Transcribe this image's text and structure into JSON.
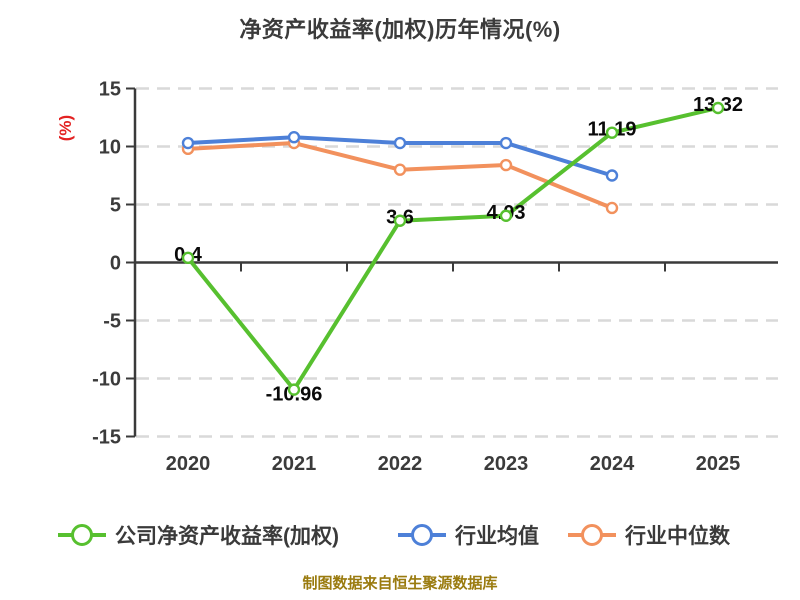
{
  "title": "净资产收益率(加权)历年情况(%)",
  "caption": "制图数据来自恒生聚源数据库",
  "chart_data": {
    "type": "line",
    "title": "净资产收益率(加权)历年情况(%)",
    "categories": [
      "2020",
      "2021",
      "2022",
      "2023",
      "2024",
      "2025"
    ],
    "xlabel": "",
    "ylabel": "(%)",
    "ylim": [
      -15,
      15
    ],
    "y_ticks": [
      15,
      10,
      5,
      0,
      -5,
      -10,
      -15
    ],
    "grid": "horizontal-dashed",
    "legend_position": "bottom",
    "series": [
      {
        "name": "公司净资产收益率(加权)",
        "slug": "company-roe-weighted",
        "color": "#57c02f",
        "values": [
          0.4,
          -10.96,
          3.6,
          4.03,
          11.19,
          13.32
        ],
        "point_labels": [
          "0.4",
          "-10.96",
          "3.6",
          "4.03",
          "11.19",
          "13.32"
        ],
        "labeled": true
      },
      {
        "name": "行业均值",
        "slug": "industry-average",
        "color": "#4d80d8",
        "values": [
          10.3,
          10.8,
          10.3,
          10.3,
          7.5
        ],
        "labeled": false
      },
      {
        "name": "行业中位数",
        "slug": "industry-median",
        "color": "#f2915d",
        "values": [
          9.8,
          10.3,
          8.0,
          8.4,
          4.7
        ],
        "labeled": false
      }
    ],
    "axis_color": "#3a3a3a",
    "tick_label_color": "#3b3b3b",
    "ylabel_color": "#e32222",
    "gridline_color": "#d9d9d9",
    "data_label_color": "#0a0a0a"
  },
  "legend": {
    "items": [
      "公司净资产收益率(加权)",
      "行业均值",
      "行业中位数"
    ]
  },
  "colors": {
    "title": "#3b3b3b",
    "caption": "#9a7b0f",
    "background": "#ffffff"
  }
}
